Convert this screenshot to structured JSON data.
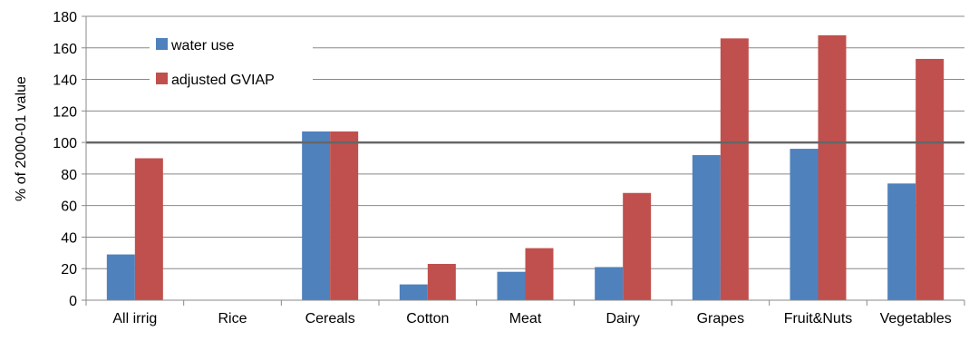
{
  "chart_data": {
    "type": "bar",
    "title": "",
    "xlabel": "",
    "ylabel": "% of 2000-01 value",
    "ylim": [
      0,
      180
    ],
    "yticks": [
      0,
      20,
      40,
      60,
      80,
      100,
      120,
      140,
      160,
      180
    ],
    "grid": true,
    "legend_position": "top-left",
    "reference_line": 100,
    "categories": [
      "All irrig",
      "Rice",
      "Cereals",
      "Cotton",
      "Meat",
      "Dairy",
      "Grapes",
      "Fruit&Nuts",
      "Vegetables"
    ],
    "series": [
      {
        "name": "water use",
        "color": "#4f81bd",
        "values": [
          29,
          0,
          107,
          10,
          18,
          21,
          92,
          96,
          74
        ]
      },
      {
        "name": "adjusted GVIAP",
        "color": "#c0504d",
        "values": [
          90,
          0,
          107,
          23,
          33,
          68,
          166,
          168,
          153
        ]
      }
    ]
  }
}
